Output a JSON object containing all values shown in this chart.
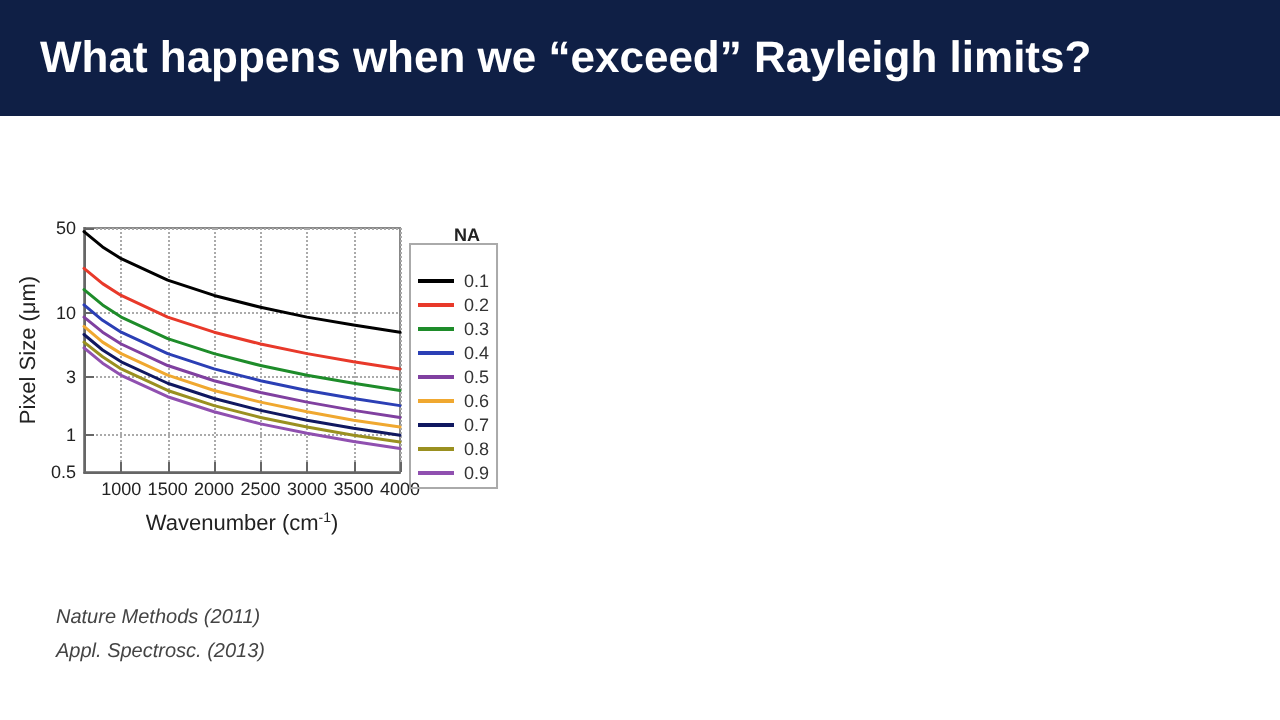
{
  "chart_data": {
    "type": "line",
    "title": "What happens when we “exceed” Rayleigh limits?",
    "xlabel": "Wavenumber (cm$^{-1}$)",
    "ylabel": "Pixel Size (μm)",
    "legend_title": "NA",
    "x": [
      600,
      800,
      1000,
      1500,
      2000,
      2500,
      3000,
      3500,
      4000
    ],
    "series": [
      {
        "name": "0.1",
        "color": "#000000",
        "values": [
          46.7,
          35,
          28,
          18.7,
          14,
          11.2,
          9.3,
          8,
          7
        ]
      },
      {
        "name": "0.2",
        "color": "#e8392a",
        "values": [
          23.3,
          17.5,
          14,
          9.3,
          7,
          5.6,
          4.67,
          4,
          3.5
        ]
      },
      {
        "name": "0.3",
        "color": "#1e8c2a",
        "values": [
          15.6,
          11.7,
          9.3,
          6.2,
          4.67,
          3.73,
          3.11,
          2.67,
          2.33
        ]
      },
      {
        "name": "0.4",
        "color": "#2b3fb5",
        "values": [
          11.7,
          8.75,
          7,
          4.67,
          3.5,
          2.8,
          2.33,
          2,
          1.75
        ]
      },
      {
        "name": "0.5",
        "color": "#8040a0",
        "values": [
          9.3,
          7,
          5.6,
          3.73,
          2.8,
          2.24,
          1.87,
          1.6,
          1.4
        ]
      },
      {
        "name": "0.6",
        "color": "#f0a830",
        "values": [
          7.8,
          5.8,
          4.67,
          3.11,
          2.33,
          1.87,
          1.56,
          1.33,
          1.17
        ]
      },
      {
        "name": "0.7",
        "color": "#101860",
        "values": [
          6.7,
          5,
          4,
          2.67,
          2,
          1.6,
          1.33,
          1.14,
          1
        ]
      },
      {
        "name": "0.8",
        "color": "#9a9020",
        "values": [
          5.8,
          4.4,
          3.5,
          2.33,
          1.75,
          1.4,
          1.17,
          1,
          0.88
        ]
      },
      {
        "name": "0.9",
        "color": "#9050b0",
        "values": [
          5.2,
          3.9,
          3.1,
          2.07,
          1.56,
          1.24,
          1.04,
          0.89,
          0.78
        ]
      }
    ],
    "xlim": [
      600,
      4000
    ],
    "xticks": [
      1000,
      1500,
      2000,
      2500,
      3000,
      3500,
      4000
    ],
    "ylim": [
      0.5,
      50
    ],
    "yticks": [
      0.5,
      1,
      3,
      10,
      50
    ],
    "log": "y",
    "grid": true,
    "legend": "right",
    "marker": "none",
    "line_style": "solid",
    "annotations": [
      "Nature Methods (2011)",
      "Appl. Spectrosc. (2013)"
    ]
  }
}
